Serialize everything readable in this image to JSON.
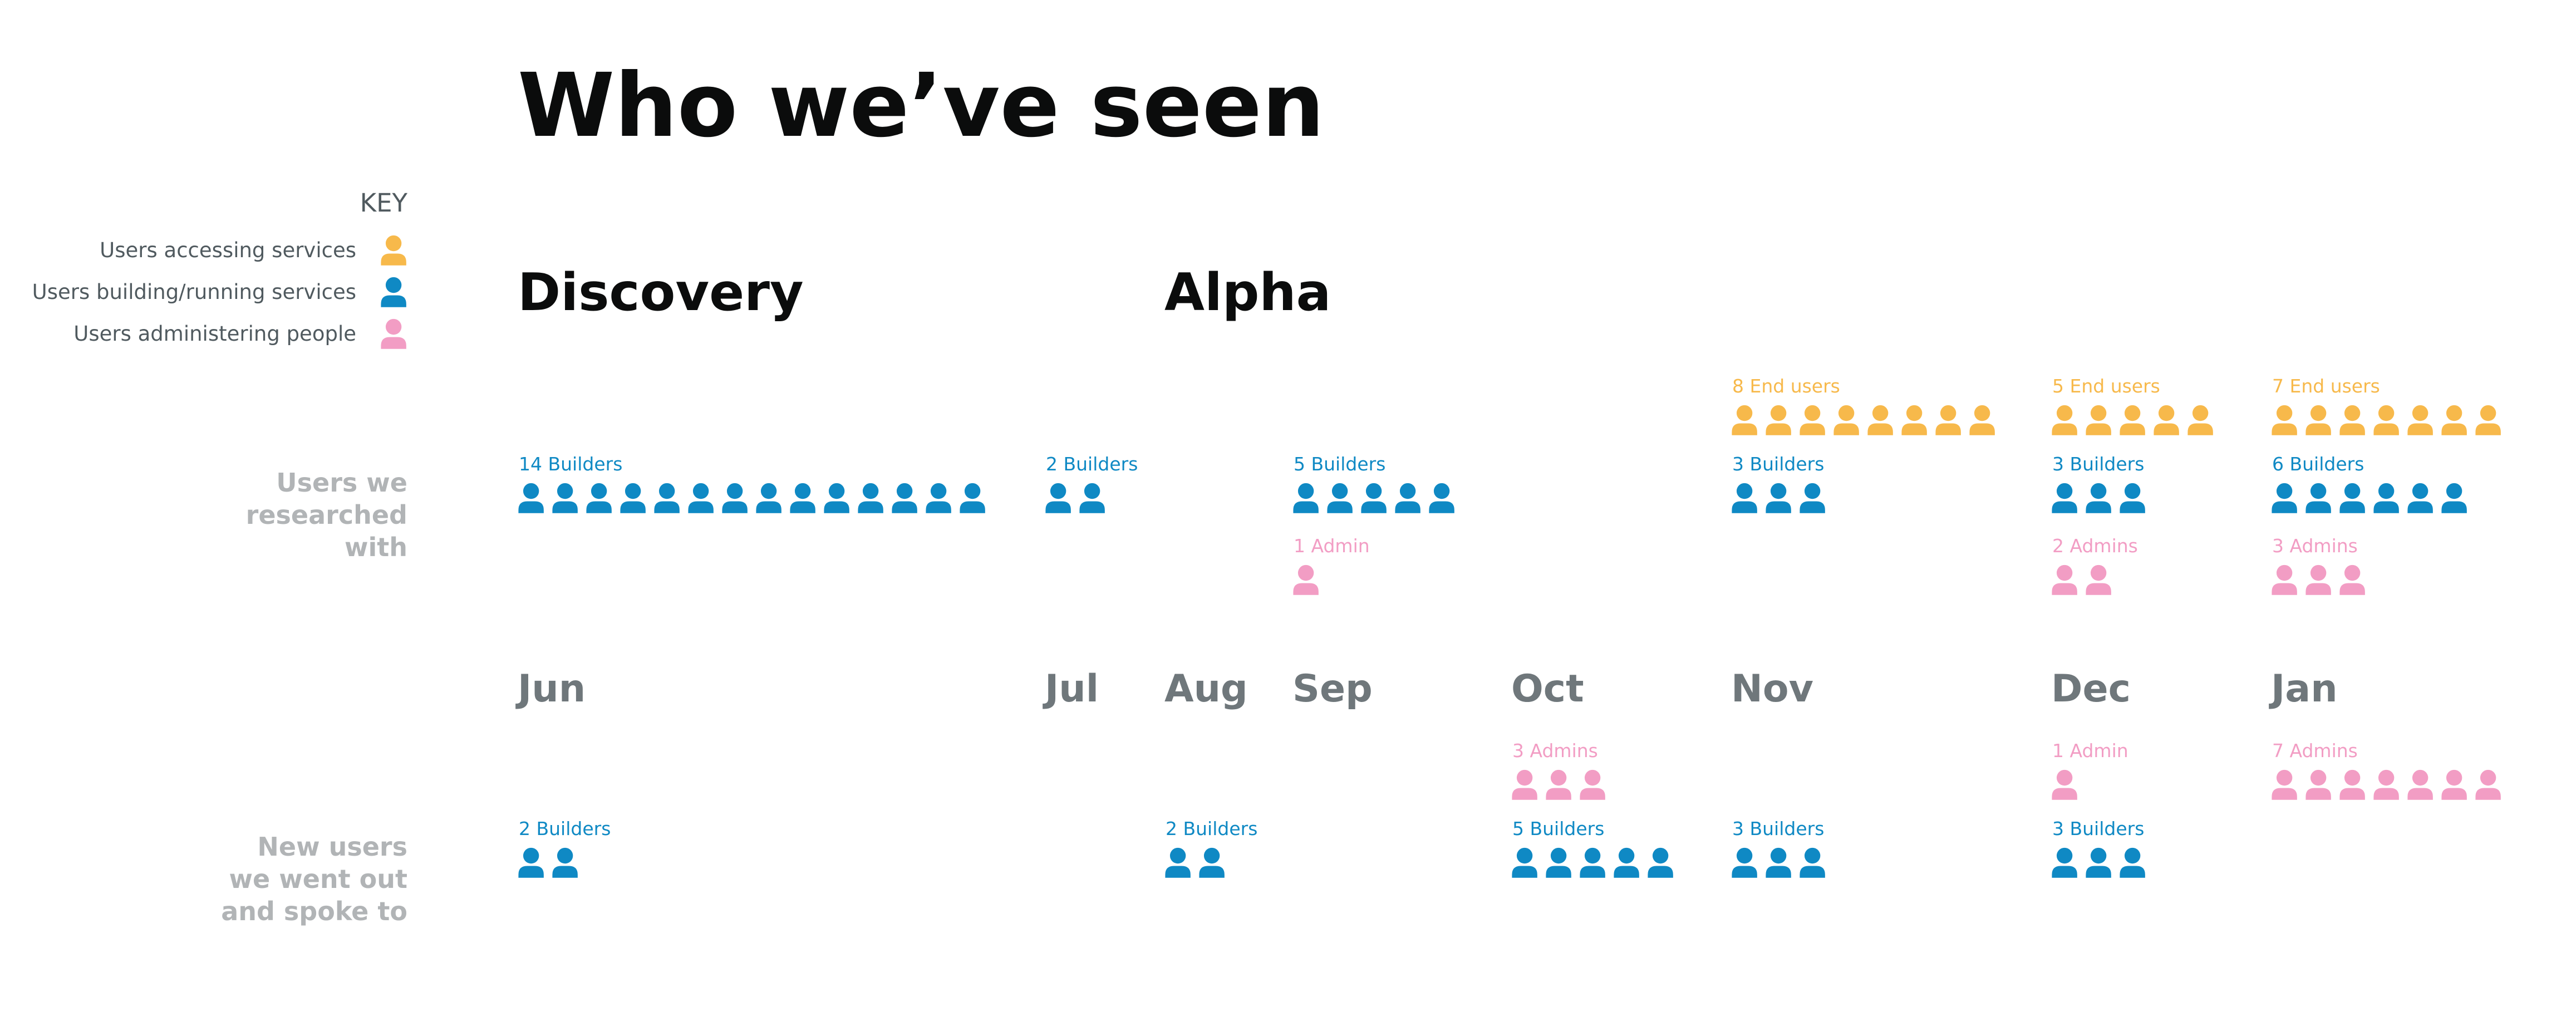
{
  "title": "Who we’ve seen",
  "key": {
    "heading": "KEY",
    "items": [
      {
        "label": "Users accessing services",
        "type": "end"
      },
      {
        "label": "Users building/running services",
        "type": "builder"
      },
      {
        "label": "Users administering people",
        "type": "admin"
      }
    ]
  },
  "colors": {
    "end": "#f7b94b",
    "builder": "#0f89c4",
    "admin": "#f29dc4"
  },
  "phases": [
    "Discovery",
    "Alpha"
  ],
  "row_labels": {
    "researched": [
      "Users we",
      "researched",
      "with"
    ],
    "new_users": [
      "New users",
      "we went out",
      "and spoke to"
    ]
  },
  "months": [
    "Jun",
    "Jul",
    "Aug",
    "Sep",
    "Oct",
    "Nov",
    "Dec",
    "Jan"
  ],
  "researched": [
    {
      "month": "Jun",
      "type": "builder",
      "count": 14,
      "label": "14 Builders"
    },
    {
      "month": "Jul",
      "type": "builder",
      "count": 2,
      "label": "2 Builders"
    },
    {
      "month": "Sep",
      "type": "builder",
      "count": 5,
      "label": "5 Builders"
    },
    {
      "month": "Sep",
      "type": "admin",
      "count": 1,
      "label": "1 Admin"
    },
    {
      "month": "Nov",
      "type": "end",
      "count": 8,
      "label": "8 End users"
    },
    {
      "month": "Nov",
      "type": "builder",
      "count": 3,
      "label": "3 Builders"
    },
    {
      "month": "Dec",
      "type": "end",
      "count": 5,
      "label": "5 End users"
    },
    {
      "month": "Dec",
      "type": "builder",
      "count": 3,
      "label": "3 Builders"
    },
    {
      "month": "Dec",
      "type": "admin",
      "count": 2,
      "label": "2 Admins"
    },
    {
      "month": "Jan",
      "type": "end",
      "count": 7,
      "label": "7 End users"
    },
    {
      "month": "Jan",
      "type": "builder",
      "count": 6,
      "label": "6 Builders"
    },
    {
      "month": "Jan",
      "type": "admin",
      "count": 3,
      "label": "3 Admins"
    }
  ],
  "new_users": [
    {
      "month": "Jun",
      "type": "builder",
      "count": 2,
      "label": "2 Builders"
    },
    {
      "month": "Aug",
      "type": "builder",
      "count": 2,
      "label": "2 Builders"
    },
    {
      "month": "Oct",
      "type": "admin",
      "count": 3,
      "label": "3 Admins"
    },
    {
      "month": "Oct",
      "type": "builder",
      "count": 5,
      "label": "5 Builders"
    },
    {
      "month": "Nov",
      "type": "builder",
      "count": 3,
      "label": "3 Builders"
    },
    {
      "month": "Dec",
      "type": "admin",
      "count": 1,
      "label": "1 Admin"
    },
    {
      "month": "Dec",
      "type": "builder",
      "count": 3,
      "label": "3 Builders"
    },
    {
      "month": "Jan",
      "type": "admin",
      "count": 7,
      "label": "7 Admins"
    }
  ]
}
